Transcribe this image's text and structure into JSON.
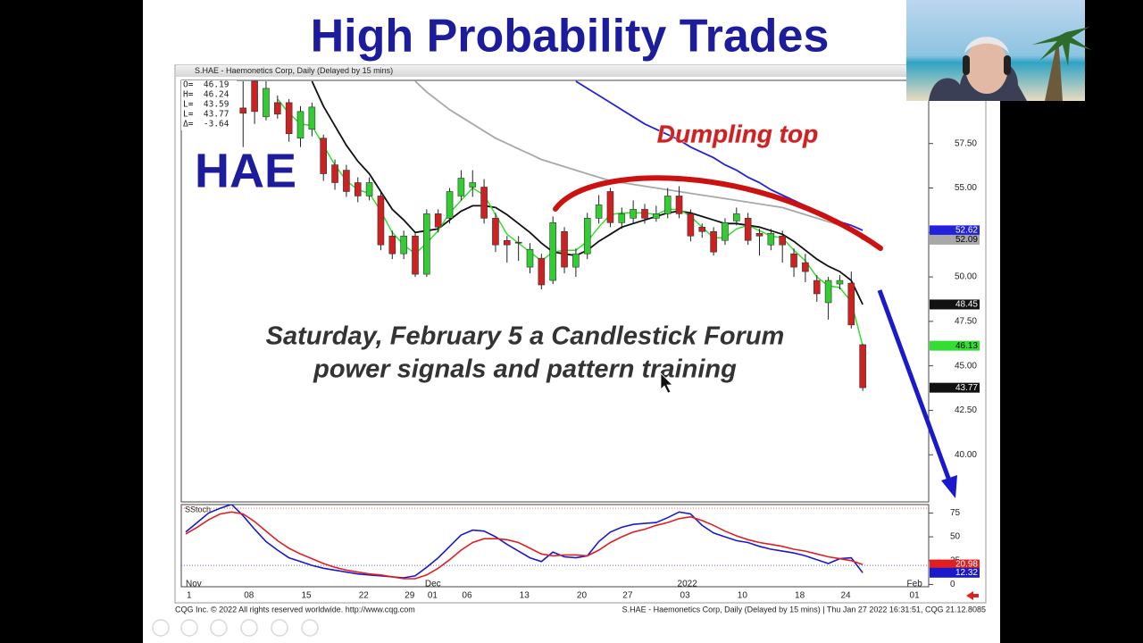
{
  "slide": {
    "title": "High Probability Trades",
    "symbol": "HAE",
    "annotation": "Dumpling top",
    "notice": [
      "Saturday, February 5 a Candlestick Forum",
      "power signals and pattern training"
    ],
    "footer_left": "CQG Inc. © 2022 All rights reserved worldwide. http://www.cqg.com",
    "footer_right": "S.HAE - Haemonetics Corp, Daily (Delayed by 15 mins) | Thu Jan 27 2022 16:31:51, CQG 21.12.8085"
  },
  "chart_data": {
    "type": "candlestick",
    "title": "S.HAE - Haemonetics Corp, Daily (Delayed by 15 mins)",
    "ohlc_box": [
      "O=  46.19",
      "H=  46.24",
      "L=  43.59",
      "L=  43.77",
      "Δ=  -3.64"
    ],
    "categories": [
      "1",
      null,
      null,
      null,
      null,
      "08",
      null,
      null,
      null,
      null,
      "15",
      null,
      null,
      null,
      null,
      "22",
      null,
      null,
      null,
      "29",
      null,
      "01",
      null,
      null,
      "06",
      null,
      null,
      null,
      null,
      "13",
      null,
      null,
      null,
      null,
      "20",
      null,
      null,
      null,
      "27",
      null,
      null,
      null,
      null,
      "03",
      null,
      null,
      null,
      null,
      "10",
      null,
      null,
      null,
      null,
      "18",
      null,
      null,
      null,
      "24",
      null,
      null,
      null,
      null,
      null,
      "01"
    ],
    "category_groups": [
      "Nov",
      null,
      null,
      null,
      null,
      null,
      null,
      null,
      null,
      null,
      null,
      null,
      null,
      null,
      null,
      null,
      null,
      null,
      null,
      null,
      null,
      "Dec",
      null,
      null,
      null,
      null,
      null,
      null,
      null,
      null,
      null,
      null,
      null,
      null,
      null,
      null,
      null,
      null,
      null,
      null,
      null,
      null,
      null,
      "2022",
      null,
      null,
      null,
      null,
      null,
      null,
      null,
      null,
      null,
      null,
      null,
      null,
      null,
      null,
      null,
      null,
      null,
      null,
      null,
      "Feb"
    ],
    "open": [
      60.2,
      60.8,
      60.0,
      60.5,
      61.0,
      59.5,
      61.0,
      59.0,
      59.8,
      59.8,
      57.8,
      58.3,
      57.8,
      56.3,
      56.0,
      55.3,
      54.55,
      54.55,
      52.3,
      51.3,
      52.3,
      50.15,
      53.55,
      53.3,
      54.55,
      55.05,
      55.05,
      53.3,
      52.05,
      51.95,
      50.55,
      51.05,
      49.8,
      52.55,
      50.55,
      51.3,
      53.3,
      54.8,
      53.05,
      53.3,
      53.8,
      53.3,
      53.55,
      54.55,
      53.55,
      52.8,
      52.55,
      52.05,
      53.15,
      53.3,
      52.45,
      51.8,
      52.3,
      51.3,
      50.8,
      49.8,
      48.55,
      49.6,
      49.65,
      46.19,
      null,
      null,
      null,
      null
    ],
    "high": [
      61.0,
      61.0,
      60.9,
      60.8,
      61.0,
      61.0,
      61.0,
      61.0,
      60.2,
      60.0,
      59.6,
      59.8,
      58.0,
      56.6,
      56.3,
      55.6,
      55.6,
      54.8,
      52.6,
      52.6,
      52.5,
      53.8,
      53.8,
      55.0,
      56.0,
      56.0,
      55.5,
      53.6,
      52.3,
      52.3,
      51.9,
      51.3,
      53.4,
      52.8,
      51.6,
      53.6,
      54.6,
      55.0,
      53.9,
      54.3,
      54.1,
      54.0,
      55.0,
      55.1,
      53.8,
      53.0,
      52.8,
      53.3,
      53.9,
      53.6,
      52.7,
      52.7,
      52.6,
      51.6,
      51.3,
      50.1,
      50.0,
      50.1,
      50.3,
      46.24,
      null,
      null,
      null,
      null
    ],
    "low": [
      59.8,
      59.5,
      59.6,
      59.0,
      58.3,
      57.3,
      58.6,
      58.8,
      58.9,
      57.6,
      57.3,
      57.9,
      55.4,
      54.9,
      54.5,
      54.2,
      54.3,
      51.5,
      51.0,
      51.0,
      50.0,
      50.0,
      52.5,
      53.0,
      54.3,
      54.5,
      53.0,
      51.4,
      50.8,
      50.9,
      50.2,
      49.3,
      49.6,
      50.2,
      50.0,
      51.0,
      53.0,
      52.8,
      52.7,
      53.0,
      53.0,
      53.1,
      53.3,
      53.3,
      52.0,
      52.2,
      51.2,
      51.8,
      52.9,
      51.8,
      51.2,
      51.5,
      50.8,
      50.0,
      49.7,
      48.6,
      47.6,
      49.3,
      47.1,
      43.59,
      null,
      null,
      null,
      null
    ],
    "close": [
      60.8,
      60.0,
      60.5,
      59.6,
      58.5,
      59.2,
      59.3,
      60.6,
      59.15,
      58.05,
      59.3,
      59.55,
      55.8,
      55.3,
      54.8,
      54.55,
      55.3,
      51.8,
      51.3,
      52.3,
      50.15,
      53.55,
      52.8,
      54.8,
      55.55,
      55.3,
      53.3,
      51.8,
      51.8,
      51.9,
      51.55,
      49.55,
      53.05,
      50.55,
      51.3,
      53.3,
      54.05,
      53.05,
      53.55,
      53.8,
      53.3,
      53.55,
      54.55,
      53.55,
      52.3,
      52.55,
      51.4,
      53.05,
      53.55,
      52.05,
      52.3,
      52.45,
      51.8,
      50.55,
      50.3,
      49.05,
      49.8,
      49.8,
      47.3,
      43.77,
      null,
      null,
      null,
      null
    ],
    "up_color": "#33cc33",
    "down_color": "#cc2222",
    "series": [
      {
        "color": "#2222dd",
        "values": [
          null,
          null,
          null,
          null,
          null,
          null,
          null,
          null,
          null,
          null,
          null,
          null,
          null,
          null,
          null,
          null,
          null,
          null,
          null,
          null,
          null,
          null,
          null,
          null,
          null,
          null,
          null,
          null,
          null,
          null,
          null,
          null,
          null,
          null,
          61.0,
          60.6,
          60.2,
          59.8,
          59.4,
          59.0,
          58.6,
          58.3,
          58.0,
          57.7,
          57.3,
          57.0,
          56.7,
          56.3,
          56.0,
          55.6,
          55.3,
          54.9,
          54.6,
          54.3,
          54.0,
          53.7,
          53.4,
          53.1,
          52.9,
          52.62,
          null,
          null,
          null,
          null
        ]
      },
      {
        "color": "#a8a8a8",
        "values": [
          null,
          null,
          null,
          null,
          null,
          null,
          null,
          null,
          null,
          null,
          null,
          null,
          null,
          null,
          null,
          null,
          null,
          null,
          null,
          null,
          61.0,
          60.4,
          59.9,
          59.4,
          59.0,
          58.6,
          58.2,
          57.8,
          57.5,
          57.2,
          56.9,
          56.6,
          56.4,
          56.2,
          56.0,
          55.8,
          55.6,
          55.4,
          55.3,
          55.2,
          55.1,
          55.0,
          54.9,
          54.8,
          54.7,
          54.6,
          54.5,
          54.4,
          54.3,
          54.2,
          54.1,
          54.0,
          53.9,
          53.7,
          53.5,
          53.3,
          53.1,
          52.9,
          52.7,
          52.09,
          null,
          null,
          null,
          null
        ]
      },
      {
        "color": "#111111",
        "values": [
          null,
          null,
          null,
          null,
          null,
          null,
          null,
          null,
          null,
          null,
          null,
          61.0,
          59.6,
          58.5,
          57.4,
          56.5,
          55.8,
          54.8,
          53.8,
          53.2,
          52.5,
          52.6,
          52.7,
          53.2,
          53.7,
          54.0,
          54.0,
          53.9,
          53.5,
          53.0,
          52.5,
          51.9,
          51.4,
          51.3,
          51.2,
          51.5,
          52.0,
          52.4,
          52.8,
          53.0,
          53.2,
          53.4,
          53.6,
          53.7,
          53.6,
          53.4,
          53.2,
          53.0,
          53.0,
          52.9,
          52.8,
          52.6,
          52.4,
          52.0,
          51.5,
          51.0,
          50.6,
          50.3,
          49.8,
          48.45,
          null,
          null,
          null,
          null
        ]
      },
      {
        "color": "#33dd33",
        "values": [
          null,
          null,
          null,
          null,
          null,
          null,
          null,
          null,
          60.0,
          59.2,
          58.6,
          58.5,
          57.4,
          56.3,
          55.4,
          54.9,
          54.7,
          53.7,
          52.5,
          51.8,
          51.3,
          51.9,
          52.6,
          53.6,
          54.3,
          55.0,
          54.6,
          53.5,
          52.4,
          51.9,
          51.4,
          50.9,
          51.4,
          51.5,
          51.5,
          52.0,
          52.8,
          53.5,
          53.6,
          53.6,
          53.6,
          53.5,
          53.8,
          53.8,
          53.4,
          52.8,
          52.2,
          52.2,
          52.7,
          52.9,
          52.6,
          52.3,
          52.2,
          51.5,
          50.9,
          50.0,
          49.5,
          49.4,
          48.6,
          46.13,
          null,
          null,
          null,
          null
        ]
      }
    ],
    "ylim": [
      37.35,
      61.05
    ],
    "yticks": [
      {
        "value": 40,
        "label": "40.00"
      },
      {
        "value": 42.5,
        "label": "42.50"
      },
      {
        "value": 45,
        "label": "45.00"
      },
      {
        "value": 47.5,
        "label": "47.50"
      },
      {
        "value": 50,
        "label": "50.00"
      },
      {
        "value": 52.5,
        "label": "52.50"
      },
      {
        "value": 55,
        "label": "55.00"
      },
      {
        "value": 57.5,
        "label": "57.50"
      }
    ],
    "indicator": {
      "type": "line",
      "title": "SStoch",
      "series": [
        {
          "color": "#1a1acc",
          "values": [
            55,
            65,
            75,
            80,
            84,
            72,
            58,
            45,
            36,
            28,
            24,
            20,
            17,
            15,
            13,
            11,
            10,
            9,
            8,
            7,
            9,
            18,
            28,
            40,
            52,
            57,
            56,
            50,
            42,
            35,
            28,
            24,
            34,
            29,
            28,
            30,
            45,
            55,
            60,
            63,
            64,
            65,
            70,
            76,
            74,
            62,
            54,
            50,
            46,
            44,
            40,
            37,
            35,
            33,
            30,
            26,
            22,
            27,
            28,
            12.32,
            null,
            null,
            null,
            null
          ]
        },
        {
          "color": "#e02020",
          "values": [
            53,
            60,
            68,
            74,
            76,
            74,
            66,
            56,
            46,
            38,
            32,
            27,
            22,
            18,
            15,
            13,
            11,
            10,
            8,
            6,
            6,
            10,
            17,
            26,
            36,
            44,
            48,
            48,
            47,
            44,
            38,
            32,
            30,
            31,
            31,
            30,
            36,
            44,
            50,
            55,
            58,
            62,
            65,
            69,
            71,
            67,
            62,
            56,
            51,
            47,
            44,
            42,
            40,
            37,
            35,
            32,
            29,
            27,
            25,
            20.98,
            null,
            null,
            null,
            null
          ]
        }
      ],
      "reference_lines": [
        {
          "value": 80,
          "color": "#ff6666"
        },
        {
          "value": 20,
          "color": "#6666ff"
        }
      ],
      "ylim": [
        -5.2,
        88.5
      ],
      "yticks": [
        0,
        25,
        50,
        75
      ]
    }
  }
}
